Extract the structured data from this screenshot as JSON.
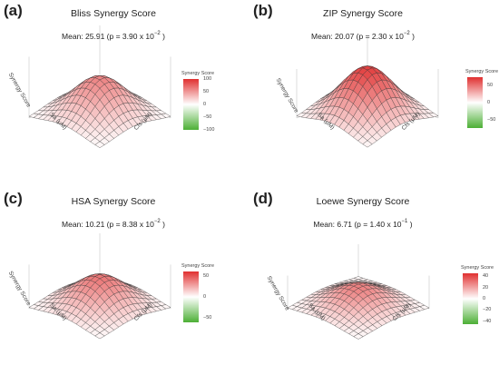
{
  "colors": {
    "positive": "#e03030",
    "neutral": "#ffffff",
    "negative": "#4caf35",
    "mesh": "#333333"
  },
  "chart_data": [
    {
      "type": "surface3d",
      "panel_label": "(a)",
      "title": "Bliss Synergy Score",
      "mean_text": "Mean: 25.91 (p = 3.90 x 10",
      "mean_exp": "−2",
      "mean_close": " )",
      "xlabel": "Sa (μM)",
      "ylabel": "Cfs (μM)",
      "zlabel": "Synergy Score",
      "legend_title": "Synergy Score",
      "legend_ticks": [
        "100",
        "50",
        "0",
        "−50",
        "−100"
      ],
      "legend_range": [
        -100,
        100
      ],
      "peak": 60,
      "floor_level": 0
    },
    {
      "type": "surface3d",
      "panel_label": "(b)",
      "title": "ZIP Synergy Score",
      "mean_text": "Mean: 20.07 (p = 2.30 x 10",
      "mean_exp": "−2",
      "mean_close": " )",
      "xlabel": "Sa (μM)",
      "ylabel": "Cfs (μM)",
      "zlabel": "Synergy Score",
      "legend_title": "Synergy Score",
      "legend_ticks": [
        "50",
        "0",
        "−50"
      ],
      "legend_range": [
        -75,
        75
      ],
      "peak": 70,
      "floor_level": 0
    },
    {
      "type": "surface3d",
      "panel_label": "(c)",
      "title": "HSA Synergy Score",
      "mean_text": "Mean: 10.21 (p = 8.38 x 10",
      "mean_exp": "−2",
      "mean_close": " )",
      "xlabel": "Sa (μM)",
      "ylabel": "Cfs (μM)",
      "zlabel": "Synergy Score",
      "legend_title": "Synergy Score",
      "legend_ticks": [
        "50",
        "0",
        "−50"
      ],
      "legend_range": [
        -60,
        60
      ],
      "peak": 40,
      "floor_level": 0
    },
    {
      "type": "surface3d",
      "panel_label": "(d)",
      "title": "Loewe Synergy Score",
      "mean_text": "Mean: 6.71 (p = 1.40 x 10",
      "mean_exp": "−1",
      "mean_close": " )",
      "xlabel": "Sa (μM)",
      "ylabel": "Cfs (μM)",
      "zlabel": "Synergy Score",
      "legend_title": "Synergy Score",
      "legend_ticks": [
        "40",
        "20",
        "0",
        "−20",
        "−40"
      ],
      "legend_range": [
        -45,
        45
      ],
      "peak": 28,
      "floor_level": 0
    }
  ]
}
